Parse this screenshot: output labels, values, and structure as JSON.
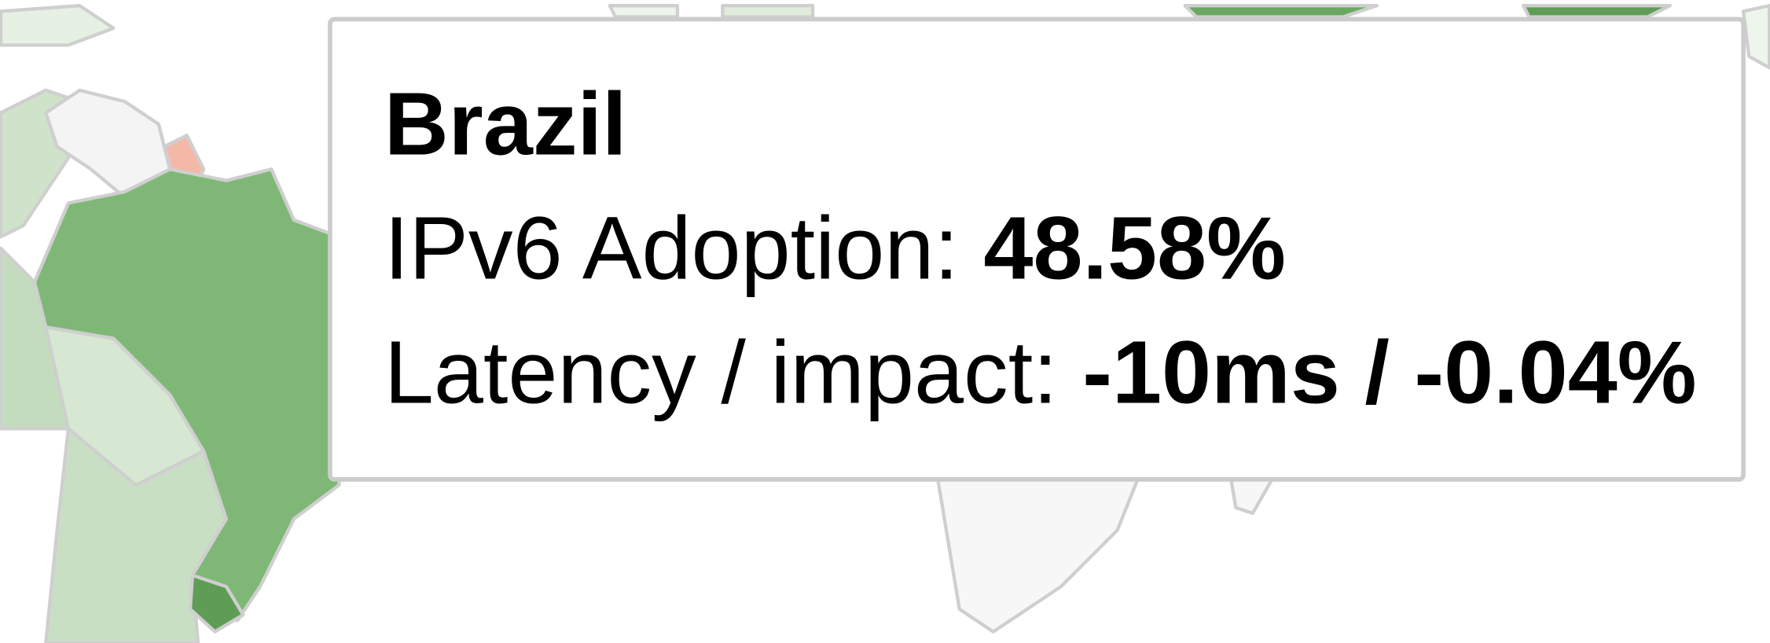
{
  "tooltip": {
    "title": "Brazil",
    "lines": [
      {
        "label": "IPv6 Adoption:",
        "value": "48.58%"
      },
      {
        "label": "Latency / impact:",
        "value": "-10ms / -0.04%"
      }
    ]
  }
}
